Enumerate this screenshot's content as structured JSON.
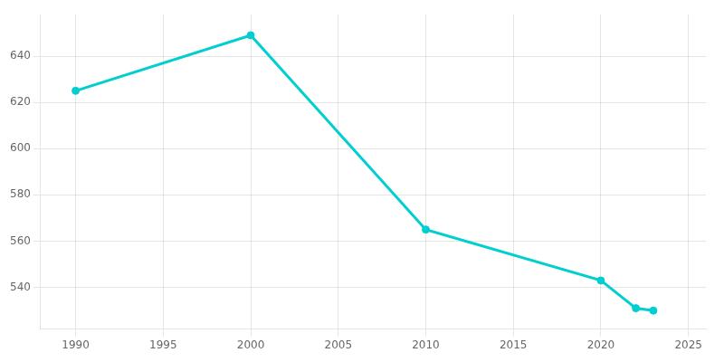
{
  "chart_data": {
    "type": "line",
    "x": [
      1990,
      2000,
      2010,
      2020,
      2022,
      2023
    ],
    "values": [
      625,
      649,
      565,
      543,
      531,
      530
    ],
    "color": "#00CED1",
    "marker": "circle",
    "xlim": [
      1988,
      2026
    ],
    "ylim": [
      522,
      658
    ],
    "xticks": [
      1990,
      1995,
      2000,
      2005,
      2010,
      2015,
      2020,
      2025
    ],
    "yticks": [
      540,
      560,
      580,
      600,
      620,
      640
    ],
    "grid": true
  }
}
